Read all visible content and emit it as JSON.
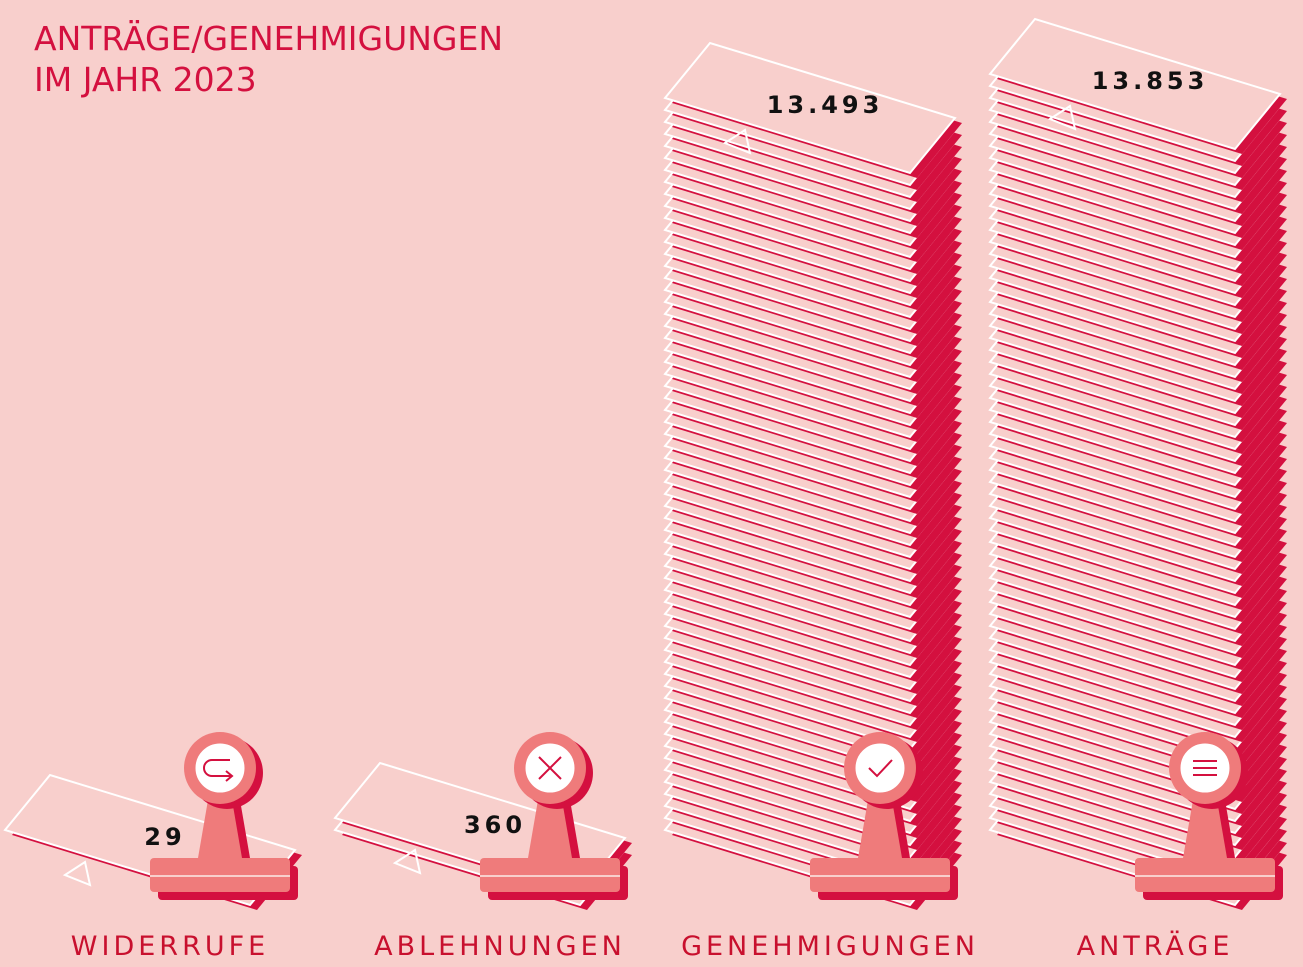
{
  "chart_data": {
    "type": "pictorial-bar",
    "title": [
      "ANTRÄGE/GENEHMIGUNGEN",
      "IM JAHR 2023"
    ],
    "categories": [
      "WIDERRUFE",
      "ABLEHNUNGEN",
      "GENEHMIGUNGEN",
      "ANTRÄGE"
    ],
    "values": [
      29,
      360,
      13493,
      13853
    ],
    "value_labels": [
      "29",
      "360",
      "13.493",
      "13.853"
    ],
    "color": "#d4103f"
  }
}
